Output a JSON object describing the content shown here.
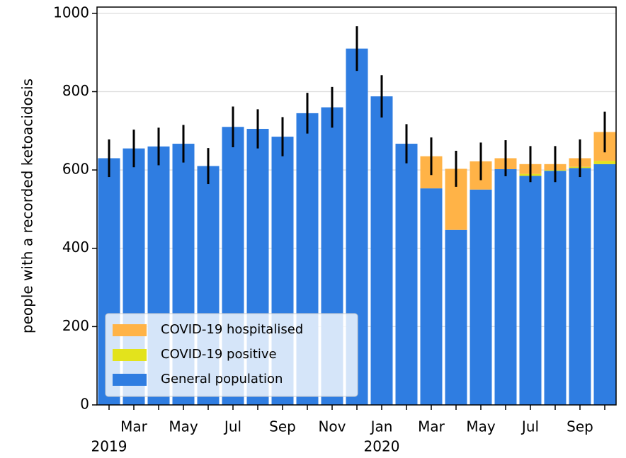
{
  "chart_data": {
    "type": "bar",
    "stacked": true,
    "ylabel": "people with a recorded ketoacidosis",
    "categories": [
      null,
      "Mar",
      null,
      "May",
      null,
      "Jul",
      null,
      "Sep",
      null,
      "Nov",
      null,
      "Jan",
      null,
      "Mar",
      null,
      "May",
      null,
      "Jul",
      null,
      "Sep",
      null
    ],
    "category_years": [
      "2019",
      null,
      null,
      null,
      null,
      null,
      null,
      null,
      null,
      null,
      null,
      "2020",
      null,
      null,
      null,
      null,
      null,
      null,
      null,
      null,
      null
    ],
    "series": [
      {
        "name": "General population",
        "color": "#2f7de1",
        "values": [
          630,
          655,
          660,
          667,
          610,
          710,
          705,
          685,
          745,
          760,
          910,
          788,
          667,
          553,
          447,
          550,
          602,
          585,
          598,
          605,
          615
        ]
      },
      {
        "name": "COVID-19 positive",
        "color": "#e3e31c",
        "values": [
          0,
          0,
          0,
          0,
          0,
          0,
          0,
          0,
          0,
          0,
          0,
          0,
          0,
          0,
          0,
          0,
          0,
          5,
          2,
          3,
          8
        ]
      },
      {
        "name": "COVID-19 hospitalised",
        "color": "#ffb347",
        "values": [
          0,
          0,
          0,
          0,
          0,
          0,
          0,
          0,
          0,
          0,
          0,
          0,
          0,
          82,
          156,
          72,
          28,
          25,
          15,
          22,
          74
        ]
      }
    ],
    "errors": [
      48,
      48,
      48,
      48,
      46,
      52,
      50,
      50,
      52,
      52,
      57,
      54,
      50,
      48,
      46,
      48,
      46,
      46,
      46,
      48,
      52
    ],
    "ylim": [
      0,
      1016
    ],
    "yticks": [
      0,
      200,
      400,
      600,
      800,
      1000
    ],
    "grid": true,
    "legend": "lower left"
  }
}
